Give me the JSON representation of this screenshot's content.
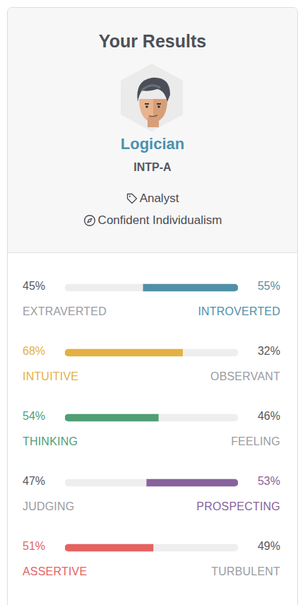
{
  "header": {
    "title": "Your Results",
    "type_name": "Logician",
    "code": "INTP-A",
    "role": "Analyst",
    "strategy": "Confident Individualism"
  },
  "chart_data": {
    "type": "bar",
    "orientation": "horizontal",
    "stacked": true,
    "grid": false,
    "tick_labels": false,
    "xlim": [
      0,
      100
    ],
    "series": [
      {
        "labels": [
          "EXTRAVERTED",
          "INTUITIVE",
          "THINKING",
          "JUDGING",
          "ASSERTIVE"
        ],
        "values": [
          45,
          68,
          54,
          47,
          51
        ],
        "value_labels": [
          "45%",
          "68%",
          "54%",
          "47%",
          "51%"
        ],
        "colors": [
          "#eeeeee",
          "#e3b143",
          "#4f9e74",
          "#eeeeee",
          "#e5625f"
        ]
      },
      {
        "labels": [
          "INTROVERTED",
          "OBSERVANT",
          "FEELING",
          "PROSPECTING",
          "TURBULENT"
        ],
        "values": [
          55,
          32,
          46,
          53,
          49
        ],
        "value_labels": [
          "55%",
          "32%",
          "46%",
          "53%",
          "49%"
        ],
        "colors": [
          "#4f8fa8",
          "#eeeeee",
          "#eeeeee",
          "#88629c",
          "#eeeeee"
        ]
      }
    ]
  }
}
